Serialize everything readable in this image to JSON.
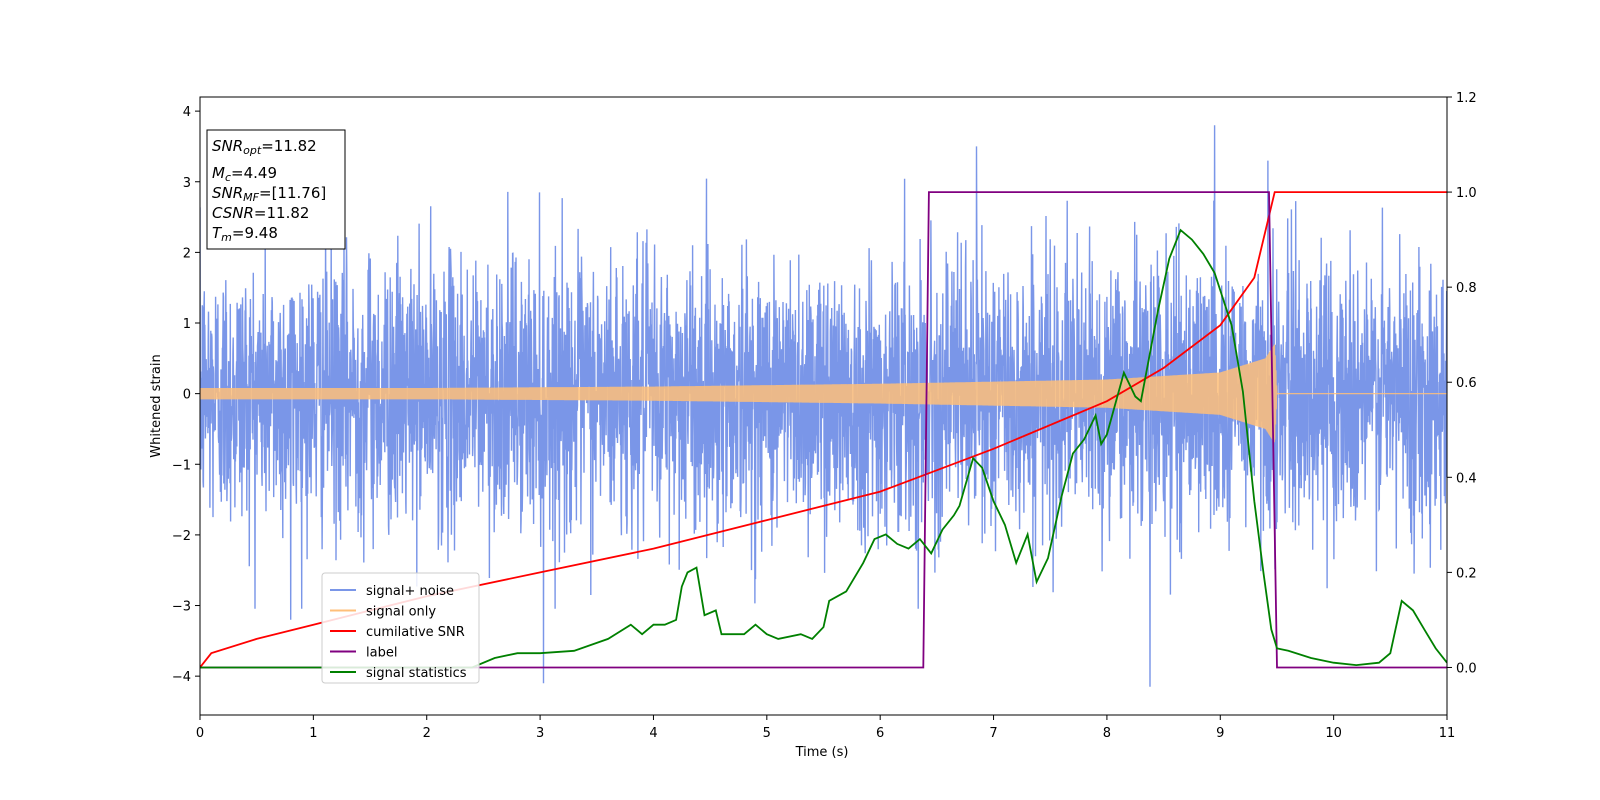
{
  "chart_data": {
    "type": "line",
    "xlabel": "Time (s)",
    "ylabel": "Whitened strain",
    "xlim": [
      0,
      11
    ],
    "ylim_left": [
      -4.55,
      4.2
    ],
    "ylim_right": [
      -0.1,
      1.2
    ],
    "x_ticks": [
      "0",
      "1",
      "2",
      "3",
      "4",
      "5",
      "6",
      "7",
      "8",
      "9",
      "10",
      "11"
    ],
    "y_ticks_left": [
      "4",
      "3",
      "2",
      "1",
      "0",
      "−1",
      "−2",
      "−3",
      "−4"
    ],
    "y_ticks_right": [
      "1.2",
      "1.0",
      "0.8",
      "0.6",
      "0.4",
      "0.2",
      "0.0"
    ],
    "legend_placement": "lower-left",
    "info_box": {
      "snr_opt": "=11.82",
      "mc": "=4.49",
      "snr_mf": "=[11.76]",
      "csnr": "=11.82",
      "tm": "=9.48"
    },
    "series": [
      {
        "name": "signal+ noise",
        "color": "#7a96e8",
        "axis": "left",
        "noise_amplitude": 2.1,
        "notable_peaks": [
          [
            0.8,
            -3.2
          ],
          [
            3.03,
            -4.1
          ],
          [
            6.85,
            3.5
          ],
          [
            8.38,
            -4.15
          ],
          [
            8.95,
            3.8
          ],
          [
            9.42,
            3.3
          ]
        ]
      },
      {
        "name": "signal only",
        "color": "#ffbf79",
        "axis": "left",
        "envelope": [
          [
            0,
            0.08
          ],
          [
            2,
            0.08
          ],
          [
            4,
            0.1
          ],
          [
            6,
            0.14
          ],
          [
            8,
            0.2
          ],
          [
            9,
            0.3
          ],
          [
            9.4,
            0.5
          ],
          [
            9.48,
            0.7
          ],
          [
            9.5,
            0.0
          ],
          [
            11,
            0.0
          ]
        ]
      },
      {
        "name": "cumilative SNR",
        "color": "#ff0000",
        "axis": "right",
        "points": [
          [
            0,
            0.0
          ],
          [
            0.1,
            0.03
          ],
          [
            0.5,
            0.06
          ],
          [
            1,
            0.09
          ],
          [
            2,
            0.15
          ],
          [
            3,
            0.2
          ],
          [
            4,
            0.25
          ],
          [
            5,
            0.31
          ],
          [
            6,
            0.37
          ],
          [
            7,
            0.46
          ],
          [
            8,
            0.56
          ],
          [
            8.5,
            0.63
          ],
          [
            9,
            0.72
          ],
          [
            9.3,
            0.82
          ],
          [
            9.48,
            1.0
          ],
          [
            11,
            1.0
          ]
        ]
      },
      {
        "name": "label",
        "color": "#800080",
        "axis": "right",
        "points": [
          [
            0,
            0.0
          ],
          [
            6.38,
            0.0
          ],
          [
            6.43,
            1.0
          ],
          [
            9.43,
            1.0
          ],
          [
            9.5,
            0.0
          ],
          [
            11,
            0.0
          ]
        ]
      },
      {
        "name": "signal statistics",
        "color": "#008000",
        "axis": "right",
        "points": [
          [
            0,
            0.0
          ],
          [
            2.4,
            0.0
          ],
          [
            2.6,
            0.02
          ],
          [
            2.8,
            0.03
          ],
          [
            3.0,
            0.03
          ],
          [
            3.3,
            0.035
          ],
          [
            3.6,
            0.06
          ],
          [
            3.8,
            0.09
          ],
          [
            3.9,
            0.07
          ],
          [
            4.0,
            0.09
          ],
          [
            4.1,
            0.09
          ],
          [
            4.2,
            0.1
          ],
          [
            4.25,
            0.17
          ],
          [
            4.3,
            0.2
          ],
          [
            4.38,
            0.21
          ],
          [
            4.45,
            0.11
          ],
          [
            4.55,
            0.12
          ],
          [
            4.6,
            0.07
          ],
          [
            4.8,
            0.07
          ],
          [
            4.9,
            0.09
          ],
          [
            5.0,
            0.07
          ],
          [
            5.1,
            0.06
          ],
          [
            5.3,
            0.07
          ],
          [
            5.4,
            0.06
          ],
          [
            5.5,
            0.085
          ],
          [
            5.55,
            0.14
          ],
          [
            5.7,
            0.16
          ],
          [
            5.85,
            0.22
          ],
          [
            5.95,
            0.27
          ],
          [
            6.05,
            0.28
          ],
          [
            6.15,
            0.26
          ],
          [
            6.25,
            0.25
          ],
          [
            6.35,
            0.27
          ],
          [
            6.45,
            0.24
          ],
          [
            6.55,
            0.29
          ],
          [
            6.65,
            0.32
          ],
          [
            6.7,
            0.34
          ],
          [
            6.82,
            0.44
          ],
          [
            6.9,
            0.42
          ],
          [
            7.0,
            0.35
          ],
          [
            7.1,
            0.3
          ],
          [
            7.2,
            0.22
          ],
          [
            7.3,
            0.28
          ],
          [
            7.38,
            0.18
          ],
          [
            7.48,
            0.23
          ],
          [
            7.6,
            0.36
          ],
          [
            7.7,
            0.45
          ],
          [
            7.8,
            0.48
          ],
          [
            7.9,
            0.53
          ],
          [
            7.95,
            0.47
          ],
          [
            8.0,
            0.49
          ],
          [
            8.15,
            0.62
          ],
          [
            8.25,
            0.57
          ],
          [
            8.3,
            0.56
          ],
          [
            8.45,
            0.75
          ],
          [
            8.55,
            0.86
          ],
          [
            8.65,
            0.92
          ],
          [
            8.75,
            0.9
          ],
          [
            8.85,
            0.87
          ],
          [
            8.95,
            0.83
          ],
          [
            9.1,
            0.72
          ],
          [
            9.2,
            0.58
          ],
          [
            9.3,
            0.35
          ],
          [
            9.38,
            0.2
          ],
          [
            9.45,
            0.08
          ],
          [
            9.5,
            0.04
          ],
          [
            9.6,
            0.035
          ],
          [
            9.8,
            0.02
          ],
          [
            10.0,
            0.01
          ],
          [
            10.2,
            0.005
          ],
          [
            10.4,
            0.01
          ],
          [
            10.5,
            0.03
          ],
          [
            10.6,
            0.14
          ],
          [
            10.7,
            0.12
          ],
          [
            10.8,
            0.08
          ],
          [
            10.9,
            0.04
          ],
          [
            11,
            0.01
          ]
        ]
      }
    ]
  }
}
